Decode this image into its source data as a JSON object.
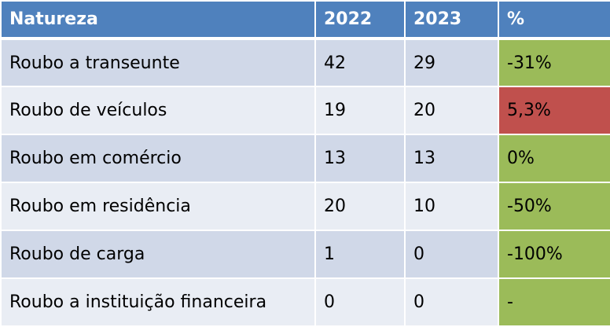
{
  "table": {
    "headers": {
      "natureza": "Natureza",
      "y2022": "2022",
      "y2023": "2023",
      "pct": "%"
    },
    "rows": [
      {
        "natureza": "Roubo a transeunte",
        "y2022": "42",
        "y2023": "29",
        "pct": "-31%"
      },
      {
        "natureza": "Roubo de veículos",
        "y2022": "19",
        "y2023": "20",
        "pct": "5,3%"
      },
      {
        "natureza": "Roubo em comércio",
        "y2022": "13",
        "y2023": "13",
        "pct": "0%"
      },
      {
        "natureza": "Roubo em residência",
        "y2022": "20",
        "y2023": "10",
        "pct": "-50%"
      },
      {
        "natureza": "Roubo de carga",
        "y2022": "1",
        "y2023": "0",
        "pct": "-100%"
      },
      {
        "natureza": "Roubo a instituição financeira",
        "y2022": "0",
        "y2023": "0",
        "pct": "-"
      }
    ]
  },
  "colors": {
    "header_bg": "#4f81bd",
    "row_dark": "#d0d8e8",
    "row_light": "#e9edf4",
    "pct_decrease_or_stable": "#9bbb59",
    "pct_increase": "#c0504d"
  }
}
